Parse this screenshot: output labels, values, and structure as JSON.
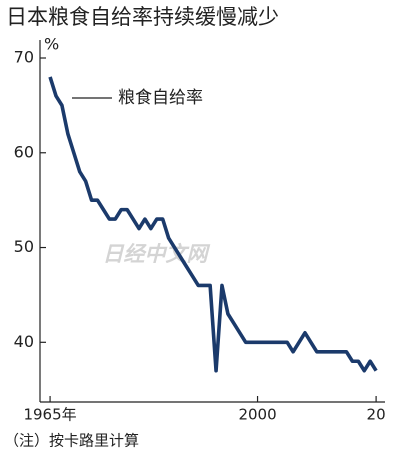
{
  "chart_data": {
    "type": "line",
    "title": "日本粮食自给率持续缓慢减少",
    "y_unit": "%",
    "annotation": "粮食自给率",
    "watermark": "日经中文网",
    "note": "（注）按卡路里计算",
    "x": [
      1965,
      1966,
      1967,
      1968,
      1969,
      1970,
      1971,
      1972,
      1973,
      1974,
      1975,
      1976,
      1977,
      1978,
      1979,
      1980,
      1981,
      1982,
      1983,
      1984,
      1985,
      1986,
      1987,
      1988,
      1989,
      1990,
      1991,
      1992,
      1993,
      1994,
      1995,
      1996,
      1997,
      1998,
      1999,
      2000,
      2001,
      2002,
      2003,
      2004,
      2005,
      2006,
      2007,
      2008,
      2009,
      2010,
      2011,
      2012,
      2013,
      2014,
      2015,
      2016,
      2017,
      2018,
      2019,
      2020
    ],
    "series": [
      {
        "name": "粮食自给率",
        "color": "#1b3a6b",
        "values": [
          68,
          66,
          65,
          62,
          60,
          58,
          57,
          55,
          55,
          54,
          53,
          53,
          54,
          54,
          53,
          52,
          53,
          52,
          53,
          53,
          51,
          50,
          49,
          48,
          47,
          46,
          46,
          46,
          37,
          46,
          43,
          42,
          41,
          40,
          40,
          40,
          40,
          40,
          40,
          40,
          40,
          39,
          40,
          41,
          40,
          39,
          39,
          39,
          39,
          39,
          39,
          38,
          38,
          37,
          38,
          37
        ]
      }
    ],
    "xlim": [
      1963.3,
      2021.5
    ],
    "ylim": [
      33.7,
      71.9
    ],
    "xticks": [
      {
        "value": 1965,
        "label": "1965年"
      },
      2000,
      {
        "value": 2020,
        "label": "20"
      }
    ],
    "yticks": [
      40,
      50,
      60,
      70
    ]
  }
}
